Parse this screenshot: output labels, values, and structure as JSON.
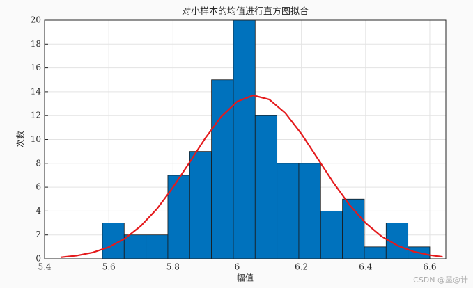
{
  "chart_data": {
    "type": "histogram",
    "title": "对小样本的均值进行直方图拟合",
    "xlabel": "幅值",
    "ylabel": "次数",
    "bins": [
      5.58,
      5.648,
      5.716,
      5.784,
      5.852,
      5.92,
      5.988,
      6.056,
      6.124,
      6.192,
      6.26,
      6.328,
      6.396,
      6.464,
      6.532,
      6.6
    ],
    "counts": [
      3,
      2,
      2,
      7,
      9,
      15,
      20,
      12,
      8,
      8,
      4,
      5,
      1,
      3,
      1
    ],
    "color": "#0072bd",
    "fit": {
      "color": "#e41a1c",
      "x": [
        5.45,
        5.5,
        5.55,
        5.6,
        5.65,
        5.7,
        5.75,
        5.8,
        5.85,
        5.9,
        5.95,
        6.0,
        6.05,
        6.1,
        6.15,
        6.2,
        6.25,
        6.3,
        6.35,
        6.4,
        6.45,
        6.5,
        6.55,
        6.6,
        6.64
      ],
      "values": [
        0.13,
        0.27,
        0.53,
        0.98,
        1.69,
        2.75,
        4.18,
        5.98,
        8.02,
        10.09,
        11.9,
        13.18,
        13.7,
        13.35,
        12.21,
        10.48,
        8.43,
        6.37,
        4.51,
        3.0,
        1.87,
        1.1,
        0.6,
        0.31,
        0.17
      ]
    },
    "xlim": [
      5.4,
      6.65
    ],
    "ylim": [
      0,
      20
    ],
    "xticks": [
      5.4,
      5.6,
      5.8,
      6,
      6.2,
      6.4,
      6.6
    ],
    "yticks": [
      0,
      2,
      4,
      6,
      8,
      10,
      12,
      14,
      16,
      18,
      20
    ],
    "grid": true,
    "watermark": "CSDN @墨@计"
  }
}
